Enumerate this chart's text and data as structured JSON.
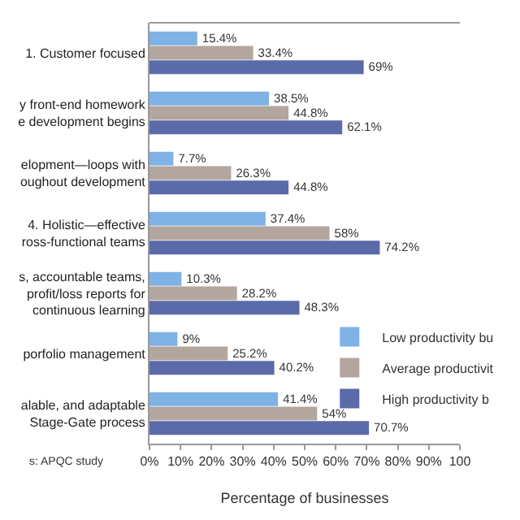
{
  "chart_data": {
    "type": "bar",
    "orientation": "horizontal",
    "categories": [
      "1. Customer focused",
      "y front-end homework\ne development begins",
      "elopment—loops with\noughout development",
      "4. Holistic—effective\nross-functional teams",
      "s, accountable teams,\nprofit/loss reports for\ncontinuous learning",
      "porfolio management",
      "alable, and adaptable\nStage-Gate process"
    ],
    "series": [
      {
        "name": "Low productivity bu",
        "color": "#7fb2e5",
        "values": [
          15.4,
          38.5,
          7.7,
          37.4,
          10.3,
          9,
          41.4
        ]
      },
      {
        "name": "Average productivit",
        "color": "#b3a69f",
        "values": [
          33.4,
          44.8,
          26.3,
          58,
          28.2,
          25.2,
          54
        ]
      },
      {
        "name": "High productivity b",
        "color": "#5b6aa8",
        "values": [
          69,
          62.1,
          44.8,
          74.2,
          48.3,
          40.2,
          70.7
        ]
      }
    ],
    "value_labels": [
      [
        "15.4%",
        "38.5%",
        "7.7%",
        "37.4%",
        "10.3%",
        "9%",
        "41.4%"
      ],
      [
        "33.4%",
        "44.8%",
        "26.3%",
        "58%",
        "28.2%",
        "25.2%",
        "54%"
      ],
      [
        "69%",
        "62.1%",
        "44.8%",
        "74.2%",
        "48.3%",
        "40.2%",
        "70.7%"
      ]
    ],
    "xlim": [
      0,
      100
    ],
    "xticks": [
      {
        "value": 0,
        "label": "0%"
      },
      {
        "value": 10,
        "label": "10%"
      },
      {
        "value": 20,
        "label": "20%"
      },
      {
        "value": 30,
        "label": "30%"
      },
      {
        "value": 40,
        "label": "40%"
      },
      {
        "value": 50,
        "label": "50%"
      },
      {
        "value": 60,
        "label": "60%"
      },
      {
        "value": 70,
        "label": "70%"
      },
      {
        "value": 80,
        "label": "80%"
      },
      {
        "value": 90,
        "label": "90%"
      },
      {
        "value": 100,
        "label": "100"
      }
    ],
    "xlabel": "Percentage of businesses",
    "annotations": [
      "s: APQC study"
    ],
    "legend": "right"
  }
}
